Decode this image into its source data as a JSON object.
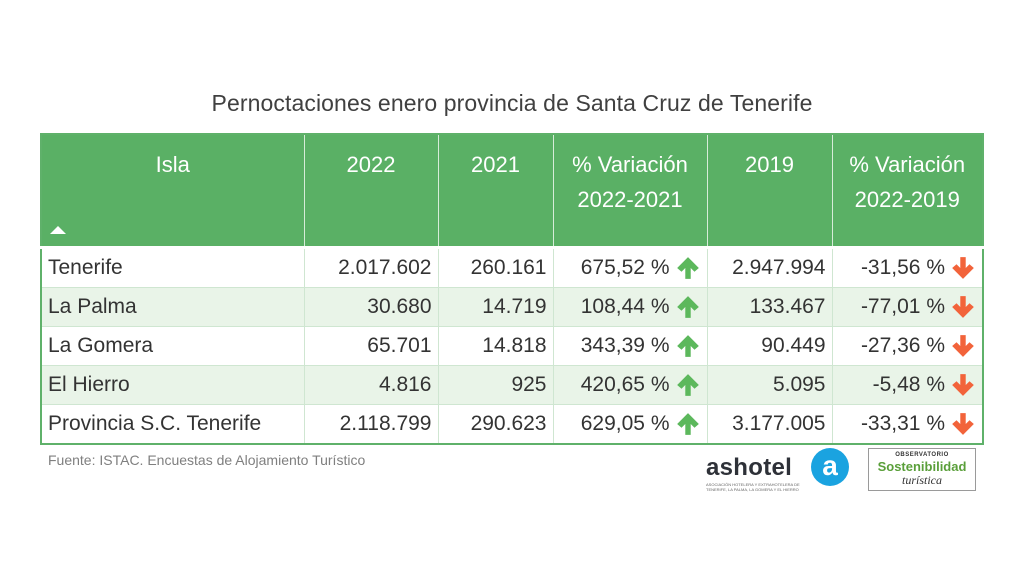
{
  "title": "Pernoctaciones enero provincia de Santa Cruz de Tenerife",
  "table": {
    "headers": {
      "isla": "Isla",
      "y2022": "2022",
      "y2021": "2021",
      "var_2022_2021_l1": "% Variación",
      "var_2022_2021_l2": "2022-2021",
      "y2019": "2019",
      "var_2022_2019_l1": "% Variación",
      "var_2022_2019_l2": "2022-2019"
    },
    "rows": [
      {
        "isla": "Tenerife",
        "y2022": "2.017.602",
        "y2021": "260.161",
        "var1": "675,52 %",
        "y2019": "2.947.994",
        "var2": "-31,56 %"
      },
      {
        "isla": "La Palma",
        "y2022": "30.680",
        "y2021": "14.719",
        "var1": "108,44 %",
        "y2019": "133.467",
        "var2": "-77,01 %"
      },
      {
        "isla": "La Gomera",
        "y2022": "65.701",
        "y2021": "14.818",
        "var1": "343,39 %",
        "y2019": "90.449",
        "var2": "-27,36 %"
      },
      {
        "isla": "El Hierro",
        "y2022": "4.816",
        "y2021": "925",
        "var1": "420,65 %",
        "y2019": "5.095",
        "var2": "-5,48 %"
      },
      {
        "isla": "Provincia S.C. Tenerife",
        "y2022": "2.118.799",
        "y2021": "290.623",
        "var1": "629,05 %",
        "y2019": "3.177.005",
        "var2": "-33,31 %"
      }
    ],
    "colors": {
      "header": "#5ab065",
      "alt_row": "#e9f4e8",
      "up_arrow": "#5cb85c",
      "down_arrow": "#f2633a"
    },
    "icons": {
      "up": "arrow-up-icon",
      "down": "arrow-down-icon",
      "sort": "sort-ascending-icon"
    }
  },
  "footer": {
    "source": "Fuente: ISTAC. Encuestas de Alojamiento Turístico"
  },
  "logos": {
    "ashotel_word": "ashotel",
    "ashotel_letter": "a",
    "ashotel_sub": "ASOCIACIÓN HOTELERA Y EXTRAHOTELERA DE TENERIFE, LA PALMA, LA GOMERA Y EL HIERRO",
    "obs_top": "OBSERVATORIO",
    "obs_main": "Sostenibilidad",
    "obs_sub": "turística",
    "obs_color": "#5a9f3a",
    "ashotel_color": "#1aa3e0"
  }
}
